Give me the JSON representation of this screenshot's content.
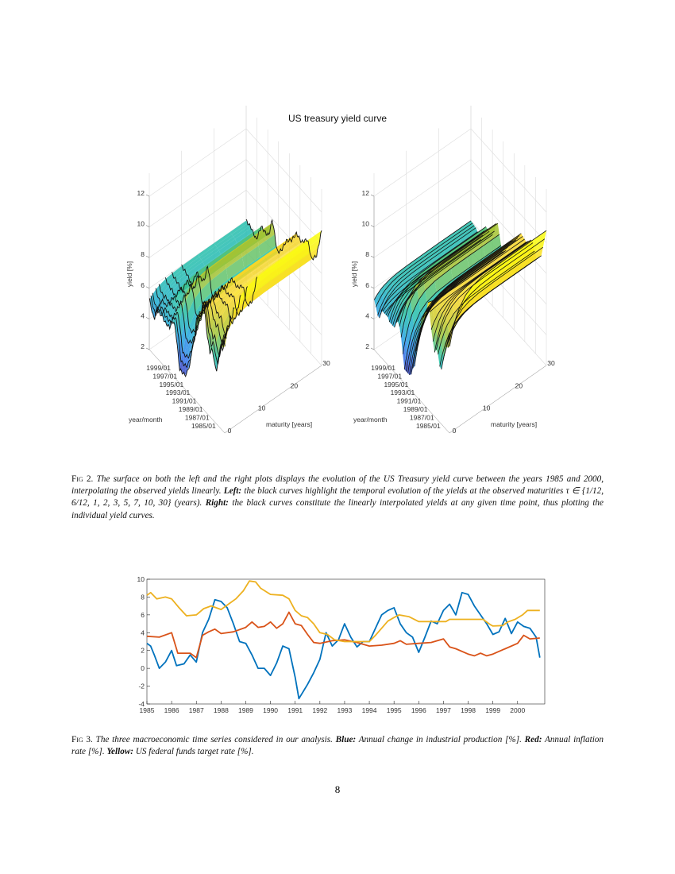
{
  "figure2": {
    "title": "US treasury yield curve",
    "plots": [
      {
        "yield_ticks": [
          "2",
          "4",
          "6",
          "8",
          "10",
          "12"
        ],
        "date_ticks": [
          "1999/01",
          "1997/01",
          "1995/01",
          "1993/01",
          "1991/01",
          "1989/01",
          "1987/01",
          "1985/01"
        ],
        "maturity_ticks": [
          "0",
          "10",
          "20",
          "30"
        ],
        "ylabel": "yield [%]",
        "date_label": "year/month",
        "maturity_label": "maturity [years]",
        "black_curves": "maturity"
      },
      {
        "yield_ticks": [
          "2",
          "4",
          "6",
          "8",
          "10",
          "12"
        ],
        "date_ticks": [
          "1999/01",
          "1997/01",
          "1995/01",
          "1993/01",
          "1991/01",
          "1989/01",
          "1987/01",
          "1985/01"
        ],
        "maturity_ticks": [
          "0",
          "10",
          "20",
          "30"
        ],
        "ylabel": "yield [%]",
        "date_label": "year/month",
        "maturity_label": "maturity [years]",
        "black_curves": "date"
      }
    ],
    "colormap": "parula",
    "caption": {
      "label": "Fig 2.",
      "segments": [
        {
          "t": " The surface on both the left and the right plots displays the evolution of the US Treasury yield curve between the years 1985 and 2000, interpolating the observed yields linearly. "
        },
        {
          "t": "Left:",
          "bold": true
        },
        {
          "t": " the black curves highlight the temporal evolution of the yields at the observed maturities τ ∈ {1/12, 6/12, 1, 2, 3, 5, 7, 10, 30} (years). "
        },
        {
          "t": "Right:",
          "bold": true
        },
        {
          "t": " the black curves constitute the linearly interpolated yields at any given time point, thus plotting the individual yield curves."
        }
      ]
    }
  },
  "chart_data": {
    "type": "line",
    "title": "",
    "xlabel": "",
    "ylabel": "",
    "xlim": [
      1985,
      2001.1
    ],
    "ylim": [
      -4,
      10
    ],
    "xticks": [
      "1985",
      "1986",
      "1987",
      "1988",
      "1989",
      "1990",
      "1991",
      "1992",
      "1993",
      "1994",
      "1995",
      "1996",
      "1997",
      "1998",
      "1999",
      "2000"
    ],
    "yticks": [
      "-4",
      "-2",
      "0",
      "2",
      "4",
      "6",
      "8",
      "10"
    ],
    "grid": false,
    "series": [
      {
        "color": "#0072BD",
        "x": [
          1985,
          1985.15,
          1985.3,
          1985.5,
          1985.75,
          1986,
          1986.2,
          1986.5,
          1986.75,
          1987,
          1987.25,
          1987.5,
          1987.75,
          1988,
          1988.25,
          1988.5,
          1988.75,
          1989,
          1989.25,
          1989.5,
          1989.75,
          1990,
          1990.25,
          1990.5,
          1990.75,
          1991,
          1991.15,
          1991.5,
          1991.75,
          1992,
          1992.25,
          1992.5,
          1992.75,
          1993,
          1993.25,
          1993.5,
          1993.75,
          1994,
          1994.25,
          1994.5,
          1994.75,
          1995,
          1995.25,
          1995.5,
          1995.75,
          1996,
          1996.25,
          1996.5,
          1996.75,
          1997,
          1997.25,
          1997.5,
          1997.75,
          1998,
          1998.25,
          1998.5,
          1998.75,
          1999,
          1999.25,
          1999.5,
          1999.75,
          2000,
          2000.25,
          2000.5,
          2000.75,
          2000.9
        ],
        "values": [
          2.8,
          2.5,
          1.5,
          0,
          0.7,
          2.0,
          0.3,
          0.5,
          1.5,
          0.7,
          4,
          5.5,
          7.7,
          7.5,
          6.8,
          5,
          3,
          2.8,
          1.5,
          0,
          0,
          -0.8,
          0.6,
          2.5,
          2.2,
          -1,
          -3.4,
          -1.8,
          -0.5,
          1,
          4,
          2.5,
          3.2,
          5,
          3.5,
          2.4,
          3,
          3,
          4.5,
          6,
          6.5,
          6.8,
          5,
          4,
          3.5,
          1.8,
          3.5,
          5.3,
          5,
          6.5,
          7.2,
          6,
          8.5,
          8.3,
          7,
          6,
          5,
          3.8,
          4.1,
          5.6,
          3.9,
          5.2,
          4.7,
          4.5,
          3.5,
          1.2
        ]
      },
      {
        "color": "#D95319",
        "x": [
          1985,
          1985.5,
          1986,
          1986.25,
          1986.5,
          1986.75,
          1987,
          1987.25,
          1987.5,
          1987.75,
          1988,
          1988.5,
          1989,
          1989.25,
          1989.5,
          1989.75,
          1990,
          1990.25,
          1990.5,
          1990.75,
          1991,
          1991.25,
          1991.5,
          1991.75,
          1992,
          1992.5,
          1993,
          1993.5,
          1994,
          1994.5,
          1995,
          1995.25,
          1995.5,
          1996,
          1996.5,
          1997,
          1997.25,
          1997.5,
          1998,
          1998.25,
          1998.5,
          1998.75,
          1999,
          1999.25,
          1999.5,
          2000,
          2000.25,
          2000.5,
          2000.9
        ],
        "values": [
          3.6,
          3.5,
          4,
          1.7,
          1.7,
          1.7,
          1.2,
          3.7,
          4.1,
          4.4,
          3.9,
          4.1,
          4.6,
          5.2,
          4.6,
          4.7,
          5.2,
          4.5,
          5,
          6.3,
          5,
          4.8,
          3.8,
          2.9,
          2.8,
          3.1,
          3.2,
          2.9,
          2.5,
          2.6,
          2.8,
          3.1,
          2.7,
          2.8,
          2.9,
          3.3,
          2.4,
          2.2,
          1.6,
          1.4,
          1.7,
          1.4,
          1.6,
          1.9,
          2.2,
          2.8,
          3.7,
          3.3,
          3.4
        ]
      },
      {
        "color": "#EDB120",
        "x": [
          1985,
          1985.15,
          1985.4,
          1985.75,
          1986,
          1986.3,
          1986.6,
          1987,
          1987.3,
          1987.6,
          1988,
          1988.3,
          1988.6,
          1988.9,
          1989.15,
          1989.4,
          1989.6,
          1990,
          1990.5,
          1990.75,
          1991,
          1991.25,
          1991.5,
          1991.75,
          1992,
          1992.3,
          1992.6,
          1993,
          1993.5,
          1994,
          1994.25,
          1994.5,
          1994.75,
          1995,
          1995.2,
          1995.6,
          1996,
          1997.1,
          1997.25,
          1998.6,
          1998.9,
          1999,
          1999.4,
          1999.6,
          1999.9,
          2000.2,
          2000.4,
          2000.9
        ],
        "values": [
          8.2,
          8.5,
          7.8,
          8,
          7.8,
          6.8,
          5.9,
          6,
          6.7,
          7,
          6.6,
          7.2,
          7.8,
          8.7,
          9.8,
          9.7,
          9,
          8.3,
          8.2,
          7.8,
          6.5,
          5.9,
          5.7,
          5.0,
          4,
          3.8,
          3.2,
          3,
          3,
          3,
          3.7,
          4.5,
          5.3,
          5.7,
          6,
          5.8,
          5.25,
          5.25,
          5.5,
          5.5,
          4.9,
          4.75,
          4.8,
          5.2,
          5.5,
          6,
          6.5,
          6.5
        ]
      }
    ]
  },
  "figure3": {
    "caption": {
      "label": "Fig 3.",
      "segments": [
        {
          "t": " The three macroeconomic time series considered in our analysis. "
        },
        {
          "t": "Blue:",
          "bold": true
        },
        {
          "t": " Annual change in industrial production [%]. "
        },
        {
          "t": "Red:",
          "bold": true
        },
        {
          "t": " Annual inflation rate [%]. "
        },
        {
          "t": "Yellow:",
          "bold": true
        },
        {
          "t": " US federal funds target rate [%]."
        }
      ]
    }
  },
  "page_number": "8"
}
